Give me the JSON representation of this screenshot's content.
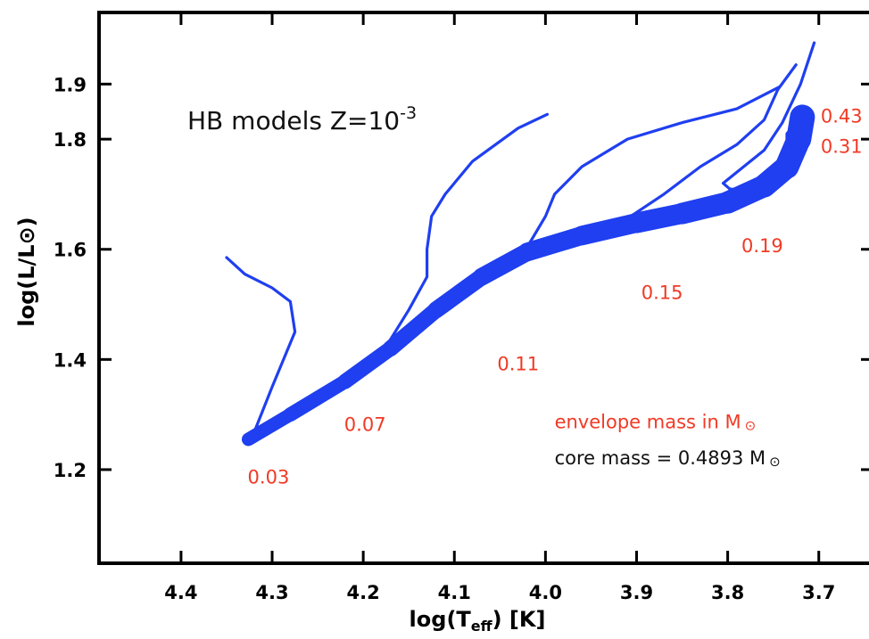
{
  "chart_data": {
    "type": "line",
    "title_parts": {
      "main": "HB models Z=10",
      "exp": "-3"
    },
    "xlabel_parts": {
      "pre": "log(T",
      "sub": "eff",
      "post": ") [K]"
    },
    "ylabel": "log(L/L⊙)",
    "xlim": [
      4.49,
      3.64
    ],
    "ylim": [
      1.03,
      2.03
    ],
    "x_ticks": [
      4.4,
      4.3,
      4.2,
      4.1,
      4.0,
      3.9,
      3.8,
      3.7
    ],
    "x_tick_labels": [
      "4.4",
      "4.3",
      "4.2",
      "4.1",
      "4.0",
      "3.9",
      "3.8",
      "3.7"
    ],
    "y_ticks": [
      1.2,
      1.4,
      1.6,
      1.8
    ],
    "y_tick_labels": [
      "1.2",
      "1.4",
      "1.6",
      "1.8",
      "1.9"
    ],
    "y_tick_19": 1.9,
    "zahb": {
      "x": [
        4.326,
        4.28,
        4.22,
        4.17,
        4.12,
        4.07,
        4.02,
        3.96,
        3.9,
        3.85,
        3.8,
        3.76,
        3.735,
        3.722,
        3.718
      ],
      "y": [
        1.255,
        1.3,
        1.36,
        1.42,
        1.49,
        1.55,
        1.595,
        1.625,
        1.648,
        1.665,
        1.685,
        1.715,
        1.75,
        1.8,
        1.84
      ]
    },
    "tracks": [
      {
        "x": [
          4.35,
          4.33,
          4.3,
          4.28,
          4.275,
          4.3,
          4.318
        ],
        "y": [
          1.585,
          1.555,
          1.53,
          1.505,
          1.45,
          1.35,
          1.275
        ]
      },
      {
        "x": [
          3.998,
          4.03,
          4.08,
          4.11,
          4.125,
          4.13,
          4.13,
          4.15,
          4.18
        ],
        "y": [
          1.845,
          1.82,
          1.76,
          1.7,
          1.66,
          1.6,
          1.55,
          1.49,
          1.41
        ]
      },
      {
        "x": [
          3.743,
          3.79,
          3.85,
          3.91,
          3.96,
          3.99,
          4.0,
          4.025
        ],
        "y": [
          1.895,
          1.855,
          1.83,
          1.8,
          1.75,
          1.7,
          1.66,
          1.59
        ]
      },
      {
        "x": [
          3.725,
          3.745,
          3.76,
          3.79,
          3.83,
          3.87,
          3.92
        ],
        "y": [
          1.935,
          1.89,
          1.835,
          1.79,
          1.75,
          1.7,
          1.645
        ]
      },
      {
        "x": [
          3.705,
          3.72,
          3.74,
          3.76,
          3.79,
          3.805,
          3.798,
          3.78
        ],
        "y": [
          1.975,
          1.9,
          1.83,
          1.78,
          1.74,
          1.72,
          1.71,
          1.705
        ]
      },
      {
        "x": [
          3.725,
          3.735,
          3.735,
          3.73,
          3.722
        ],
        "y": [
          1.83,
          1.81,
          1.8,
          1.79,
          1.79
        ]
      }
    ],
    "mass_labels": [
      {
        "text": "0.03",
        "x": 4.304,
        "y": 1.175
      },
      {
        "text": "0.07",
        "x": 4.198,
        "y": 1.27
      },
      {
        "text": "0.11",
        "x": 4.03,
        "y": 1.38
      },
      {
        "text": "0.15",
        "x": 3.872,
        "y": 1.51
      },
      {
        "text": "0.19",
        "x": 3.762,
        "y": 1.595
      },
      {
        "text": "0.31",
        "x": 3.675,
        "y": 1.775
      },
      {
        "text": "0.43",
        "x": 3.675,
        "y": 1.83
      }
    ],
    "annotations": [
      {
        "text": "envelope mass in M",
        "color": "#f03a25",
        "x": 3.99,
        "y": 1.275
      },
      {
        "text": "core mass = 0.4893 M",
        "color": "#111111",
        "x": 3.99,
        "y": 1.21
      }
    ],
    "sun_symbol": "⊙",
    "colors": {
      "track": "#1f3ff0",
      "label": "#f03a25",
      "axis": "#000000"
    }
  }
}
